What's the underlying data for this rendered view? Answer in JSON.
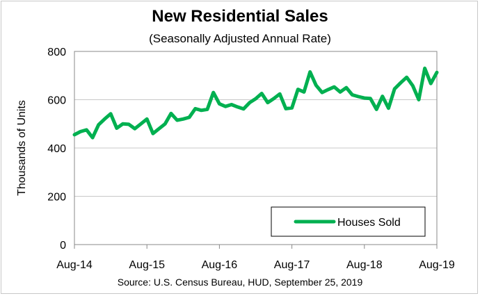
{
  "chart_data": {
    "type": "line",
    "title": "New Residential Sales",
    "subtitle": "(Seasonally Adjusted Annual Rate)",
    "xlabel": "",
    "ylabel": "Thousands of Units",
    "source": "Source:  U.S. Census Bureau, HUD, September 25, 2019",
    "ylim": [
      0,
      800
    ],
    "yticks": [
      0,
      200,
      400,
      600,
      800
    ],
    "xticks": [
      "Aug-14",
      "Aug-15",
      "Aug-16",
      "Aug-17",
      "Aug-18",
      "Aug-19"
    ],
    "grid": true,
    "legend": "bottom-right",
    "line_color": "#00b050",
    "series": [
      {
        "name": "Houses Sold",
        "values": [
          455,
          468,
          475,
          443,
          496,
          520,
          542,
          482,
          500,
          498,
          480,
          500,
          520,
          460,
          480,
          500,
          543,
          515,
          520,
          527,
          563,
          556,
          560,
          630,
          583,
          572,
          580,
          570,
          562,
          588,
          604,
          626,
          588,
          605,
          624,
          563,
          566,
          643,
          632,
          715,
          660,
          630,
          642,
          653,
          632,
          650,
          620,
          613,
          607,
          605,
          560,
          614,
          565,
          645,
          670,
          693,
          658,
          600,
          730,
          667,
          713
        ]
      }
    ]
  }
}
